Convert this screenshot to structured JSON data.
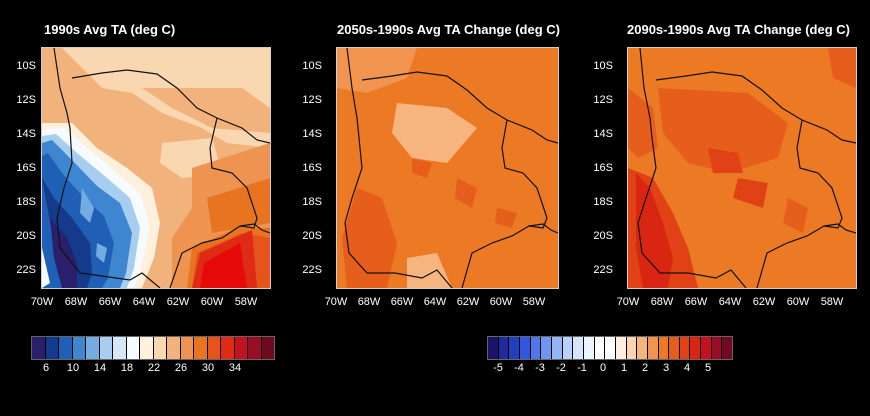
{
  "panels": [
    {
      "title": "1990s Avg TA (deg C)",
      "lat_labels": [
        "10S",
        "12S",
        "14S",
        "16S",
        "18S",
        "20S",
        "22S"
      ],
      "lon_labels": [
        "70W",
        "68W",
        "66W",
        "64W",
        "62W",
        "60W",
        "58W"
      ],
      "variable": "Average TA",
      "units": "deg C"
    },
    {
      "title": "2050s-1990s Avg TA Change (deg C)",
      "lat_labels": [
        "10S",
        "12S",
        "14S",
        "16S",
        "18S",
        "20S",
        "22S"
      ],
      "lon_labels": [
        "70W",
        "68W",
        "66W",
        "64W",
        "62W",
        "60W",
        "58W"
      ],
      "variable": "TA change",
      "units": "deg C"
    },
    {
      "title": "2090s-1990s Avg TA Change (deg C)",
      "lat_labels": [
        "10S",
        "12S",
        "14S",
        "16S",
        "18S",
        "20S",
        "22S"
      ],
      "lon_labels": [
        "70W",
        "68W",
        "66W",
        "64W",
        "62W",
        "60W",
        "58W"
      ],
      "variable": "TA change",
      "units": "deg C"
    }
  ],
  "colorbars": [
    {
      "labels": [
        "6",
        "10",
        "14",
        "18",
        "22",
        "26",
        "30",
        "34"
      ],
      "colors": [
        "#2a1f6b",
        "#143a8c",
        "#1f5fb5",
        "#3f86d0",
        "#74abe0",
        "#a7cdef",
        "#d4e8f8",
        "#f6fbff",
        "#fdf1dd",
        "#f9d7b0",
        "#f2b27c",
        "#ee9350",
        "#e87422",
        "#e4541c",
        "#df2a16",
        "#c4101f",
        "#9a0c28",
        "#6e0a20"
      ]
    },
    {
      "labels": [
        "-5",
        "-4",
        "-3",
        "-2",
        "-1",
        "0",
        "1",
        "2",
        "3",
        "4",
        "5"
      ],
      "colors": [
        "#1b1466",
        "#1e2c99",
        "#2140c0",
        "#3158dc",
        "#4e77e8",
        "#6f97ef",
        "#94b5f3",
        "#b8d1f7",
        "#d5e5fa",
        "#ecf4fd",
        "#ffffff",
        "#ffffff",
        "#fdeedd",
        "#fbd5b2",
        "#f6b47f",
        "#f1944f",
        "#ec7a24",
        "#e65e1c",
        "#e04216",
        "#d92612",
        "#c4101f",
        "#9a0c28",
        "#720a22"
      ]
    }
  ],
  "colors": {
    "background": "#000000",
    "boundary": "#111111",
    "frame": "#cfcfcf"
  }
}
